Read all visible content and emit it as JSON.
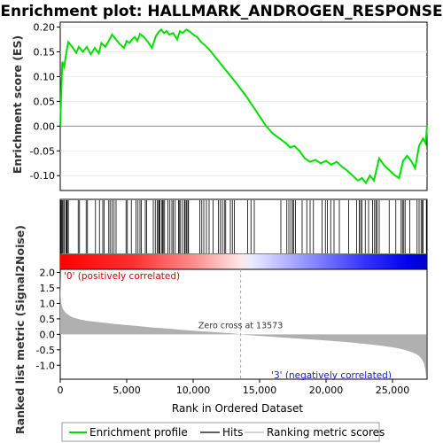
{
  "chart_data": {
    "type": "line",
    "title": "Enrichment plot: HALLMARK_ANDROGEN_RESPONSE",
    "xlabel": "Rank in Ordered Dataset",
    "panels": {
      "enrichment": {
        "ylabel": "Enrichment score (ES)",
        "ylim": [
          -0.13,
          0.21
        ],
        "yticks": [
          "0.20",
          "0.15",
          "0.10",
          "0.05",
          "0.00",
          "-0.05",
          "-0.10"
        ],
        "ytick_values": [
          0.2,
          0.15,
          0.1,
          0.05,
          0.0,
          -0.05,
          -0.1
        ],
        "series": [
          {
            "name": "Enrichment profile",
            "color": "#00dd00",
            "x": [
              0,
              60,
              150,
              300,
              450,
              600,
              900,
              1200,
              1400,
              1700,
              2000,
              2300,
              2600,
              2900,
              3100,
              3400,
              3700,
              3900,
              4200,
              4500,
              4800,
              5000,
              5200,
              5400,
              5600,
              5800,
              6000,
              6300,
              6600,
              6900,
              7200,
              7400,
              7600,
              7800,
              8000,
              8200,
              8500,
              8800,
              9000,
              9200,
              9500,
              9800,
              10000,
              10300,
              10600,
              10900,
              11200,
              11500,
              11800,
              12100,
              12400,
              12700,
              13000,
              13300,
              13573,
              14000,
              14500,
              15000,
              15500,
              16000,
              16500,
              17000,
              17300,
              17600,
              18000,
              18400,
              18800,
              19200,
              19600,
              20000,
              20400,
              20800,
              21200,
              21600,
              22000,
              22400,
              22700,
              23000,
              23300,
              23600,
              24000,
              24400,
              24800,
              25200,
              25500,
              25800,
              26100,
              26400,
              26700,
              27000,
              27300,
              27500,
              27600
            ],
            "y": [
              0.0,
              0.055,
              0.13,
              0.12,
              0.148,
              0.17,
              0.16,
              0.148,
              0.16,
              0.15,
              0.16,
              0.145,
              0.158,
              0.147,
              0.168,
              0.16,
              0.175,
              0.185,
              0.175,
              0.165,
              0.158,
              0.172,
              0.168,
              0.175,
              0.18,
              0.172,
              0.186,
              0.18,
              0.17,
              0.158,
              0.182,
              0.19,
              0.195,
              0.188,
              0.192,
              0.185,
              0.188,
              0.175,
              0.192,
              0.188,
              0.195,
              0.19,
              0.185,
              0.18,
              0.17,
              0.163,
              0.155,
              0.145,
              0.135,
              0.125,
              0.115,
              0.105,
              0.095,
              0.085,
              0.075,
              0.06,
              0.04,
              0.02,
              0.0,
              -0.015,
              -0.025,
              -0.035,
              -0.043,
              -0.04,
              -0.05,
              -0.065,
              -0.072,
              -0.068,
              -0.075,
              -0.07,
              -0.078,
              -0.072,
              -0.082,
              -0.09,
              -0.1,
              -0.11,
              -0.105,
              -0.115,
              -0.1,
              -0.11,
              -0.065,
              -0.08,
              -0.09,
              -0.1,
              -0.105,
              -0.07,
              -0.06,
              -0.07,
              -0.085,
              -0.04,
              -0.025,
              -0.035,
              0.002
            ]
          }
        ]
      },
      "hits": {
        "legend_name": "Hits",
        "positions": [
          40,
          90,
          150,
          210,
          300,
          420,
          480,
          530,
          610,
          1350,
          1450,
          1950,
          2050,
          2650,
          2950,
          3200,
          3300,
          3650,
          3750,
          3900,
          4050,
          4200,
          4950,
          5050,
          5350,
          5700,
          5850,
          6000,
          6100,
          6400,
          6500,
          7000,
          7150,
          7300,
          7400,
          7450,
          7500,
          7650,
          7700,
          7750,
          7850,
          8100,
          8250,
          8400,
          8500,
          8650,
          8900,
          8950,
          9050,
          9200,
          9350,
          9400,
          9500,
          9600,
          9650,
          10500,
          10650,
          10800,
          11000,
          11200,
          11500,
          11900,
          12050,
          12200,
          12350,
          12450,
          12800,
          12950,
          13100,
          14100,
          14350,
          14600,
          16600,
          17050,
          17200,
          17350,
          17500,
          17550,
          17700,
          18200,
          18550,
          18800,
          19050,
          19700,
          19950,
          20100,
          20350,
          20600,
          21000,
          21700,
          22300,
          22500,
          22600,
          22700,
          22950,
          23200,
          23500,
          23650,
          23750,
          23850,
          24000,
          24750,
          25250,
          25650,
          25750,
          25850,
          25950,
          26300,
          26850,
          27000,
          27150,
          27250,
          27300,
          27550
        ]
      },
      "metric": {
        "ylabel": "Ranked list metric (Signal2Noise)",
        "legend_name": "Ranking metric scores",
        "ylim": [
          -1.45,
          2.1
        ],
        "yticks": [
          "2.0",
          "1.5",
          "1.0",
          "0.5",
          "0.0",
          "-0.5",
          "-1.0"
        ],
        "ytick_values": [
          2.0,
          1.5,
          1.0,
          0.5,
          0.0,
          -0.5,
          -1.0
        ],
        "x": [
          0,
          40,
          100,
          200,
          400,
          700,
          1000,
          1500,
          2000,
          3000,
          4000,
          5000,
          6000,
          7000,
          8000,
          9000,
          10000,
          11000,
          12000,
          13000,
          13573,
          14000,
          15000,
          16000,
          17000,
          18000,
          19000,
          20000,
          21000,
          22000,
          23000,
          24000,
          25000,
          25500,
          26000,
          26500,
          26800,
          27000,
          27200,
          27350,
          27450,
          27540
        ],
        "y": [
          1.9,
          1.2,
          0.95,
          0.82,
          0.7,
          0.6,
          0.54,
          0.48,
          0.44,
          0.39,
          0.34,
          0.3,
          0.26,
          0.22,
          0.19,
          0.15,
          0.12,
          0.09,
          0.06,
          0.03,
          0.0,
          -0.02,
          -0.05,
          -0.08,
          -0.11,
          -0.14,
          -0.17,
          -0.2,
          -0.23,
          -0.27,
          -0.31,
          -0.36,
          -0.42,
          -0.46,
          -0.51,
          -0.58,
          -0.64,
          -0.7,
          -0.8,
          -0.92,
          -1.1,
          -1.4
        ]
      }
    },
    "xlim": [
      0,
      27600
    ],
    "xticks": [
      "0",
      "5,000",
      "10,000",
      "15,000",
      "20,000",
      "25,000"
    ],
    "xtick_values": [
      0,
      5000,
      10000,
      15000,
      20000,
      25000
    ],
    "zero_cross": 13573,
    "zero_cross_label": "Zero cross at 13573",
    "pos_label": "'0' (positively correlated)",
    "neg_label": "'3' (negatively correlated)",
    "legend": [
      "Enrichment profile",
      "Hits",
      "Ranking metric scores"
    ],
    "colors": {
      "profile": "#00dd00",
      "hits": "#000000",
      "metric_fill": "#b0b0b0",
      "zero_line": "#909090",
      "pos": "#ff0000",
      "neg": "#0000ff"
    }
  }
}
